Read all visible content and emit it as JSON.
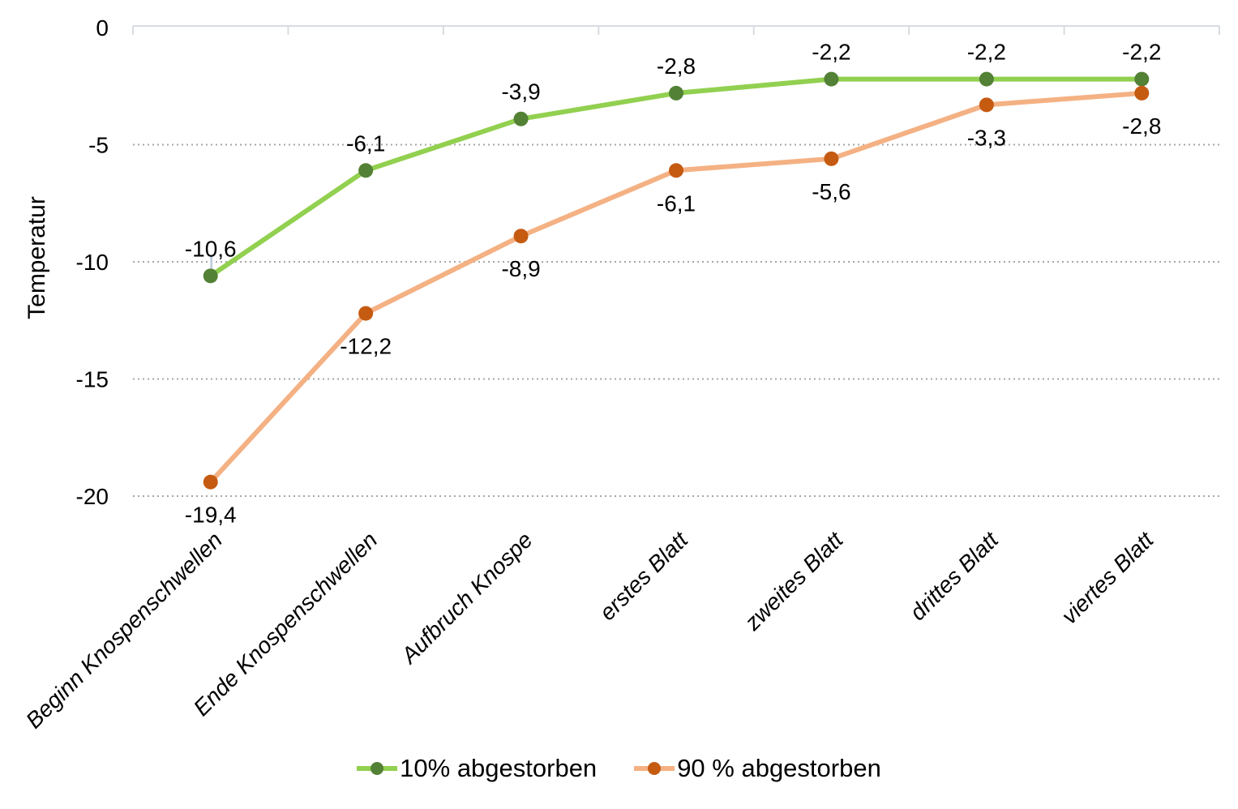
{
  "chart_data": {
    "type": "line",
    "title": "",
    "ylabel": "Temperatur",
    "xlabel": "",
    "categories": [
      "Beginn Knospenschwellen",
      "Ende Knospenschwellen",
      "Aufbruch Knospe",
      "erstes Blatt",
      "zweites Blatt",
      "drittes Blatt",
      "viertes Blatt"
    ],
    "series": [
      {
        "name": "10% abgestorben",
        "values": [
          -10.6,
          -6.1,
          -3.9,
          -2.8,
          -2.2,
          -2.2,
          -2.2
        ],
        "value_labels": [
          "-10,6",
          "-6,1",
          "-3,9",
          "-2,8",
          "-2,2",
          "-2,2",
          "-2,2"
        ],
        "line_color": "#92d050",
        "marker_color": "#538135",
        "label_position": "above"
      },
      {
        "name": "90 % abgestorben",
        "values": [
          -19.4,
          -12.2,
          -8.9,
          -6.1,
          -5.6,
          -3.3,
          -2.8
        ],
        "value_labels": [
          "-19,4",
          "-12,2",
          "-8,9",
          "-6,1",
          "-5,6",
          "-3,3",
          "-2,8"
        ],
        "line_color": "#f4b183",
        "marker_color": "#c55a11",
        "label_position": "below"
      }
    ],
    "y_axis": {
      "ticks": [
        0,
        -5,
        -10,
        -15,
        -20
      ],
      "tick_labels": [
        "0",
        "-5",
        "-10",
        "-15",
        "-20"
      ],
      "min": -20,
      "max": 0
    },
    "grid": {
      "horizontal": true,
      "style": "dotted",
      "color": "#a6a6a6"
    },
    "axis_color": "#d8dbe2",
    "leader_line_color": "#b9cade",
    "text_color": "#000000",
    "legend_position": "bottom",
    "x_labels_rotation_deg": -45,
    "x_labels_italic": true
  }
}
